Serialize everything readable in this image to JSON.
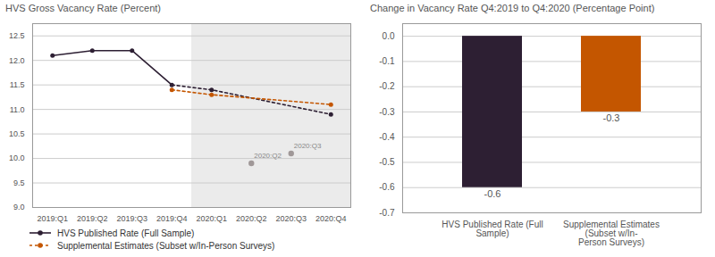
{
  "chart_data": [
    {
      "type": "line",
      "title": "HVS Gross Vacancy Rate (Percent)",
      "categories": [
        "2019:Q1",
        "2019:Q2",
        "2019:Q3",
        "2019:Q4",
        "2020:Q1",
        "2020:Q2",
        "2020:Q3",
        "2020:Q4"
      ],
      "series": [
        {
          "name": "HVS Published Rate (Full Sample)",
          "color": "#2d1f33",
          "line_style": "solid",
          "dotted_from": "2019:Q4",
          "marker": "circle",
          "x": [
            "2019:Q1",
            "2019:Q2",
            "2019:Q3",
            "2019:Q4",
            "2020:Q1",
            "2020:Q4"
          ],
          "values": [
            12.1,
            12.2,
            12.2,
            11.5,
            11.4,
            10.9
          ]
        },
        {
          "name": "Supplemental Estimates (Subset w/In-Person Surveys)",
          "color": "#c45600",
          "line_style": "dotted",
          "marker": "circle",
          "x": [
            "2019:Q4",
            "2020:Q1",
            "2020:Q4"
          ],
          "values": [
            11.4,
            11.3,
            11.1
          ]
        }
      ],
      "annotations": [
        {
          "x": "2020:Q2",
          "y": 9.9,
          "text": "2020:Q2",
          "color": "#a09898"
        },
        {
          "x": "2020:Q3",
          "y": 10.1,
          "text": "2020:Q3",
          "color": "#a09898"
        }
      ],
      "shade": {
        "categories": [
          "2020:Q1",
          "2020:Q2",
          "2020:Q3",
          "2020:Q4"
        ],
        "color": "#ebebeb"
      },
      "ylim": [
        9.0,
        12.75
      ],
      "yticks": [
        {
          "value": 9,
          "label": "9.0"
        },
        9.5,
        {
          "value": 10,
          "label": "10.0"
        },
        10.5,
        {
          "value": 11,
          "label": "11.0"
        },
        11.5,
        {
          "value": 12,
          "label": "12.0"
        },
        12.5
      ],
      "grid": true,
      "legend": "bottom"
    },
    {
      "type": "bar",
      "title": "Change in Vacancy Rate Q4:2019 to Q4:2020 (Percentage Point)",
      "categories": [
        "HVS Published Rate (Full Sample)",
        "Supplemental Estimates (Subset w/In-\nPerson Surveys)"
      ],
      "values": [
        -0.6,
        -0.3
      ],
      "colors": [
        "#2d1f33",
        "#c45600"
      ],
      "data_labels": true,
      "ylim": [
        -0.7,
        0.05
      ],
      "yticks": [
        {
          "value": 0,
          "label": "0.0"
        },
        -0.1,
        -0.2,
        -0.3,
        -0.4,
        -0.5,
        -0.6,
        -0.7
      ],
      "grid": true
    }
  ]
}
